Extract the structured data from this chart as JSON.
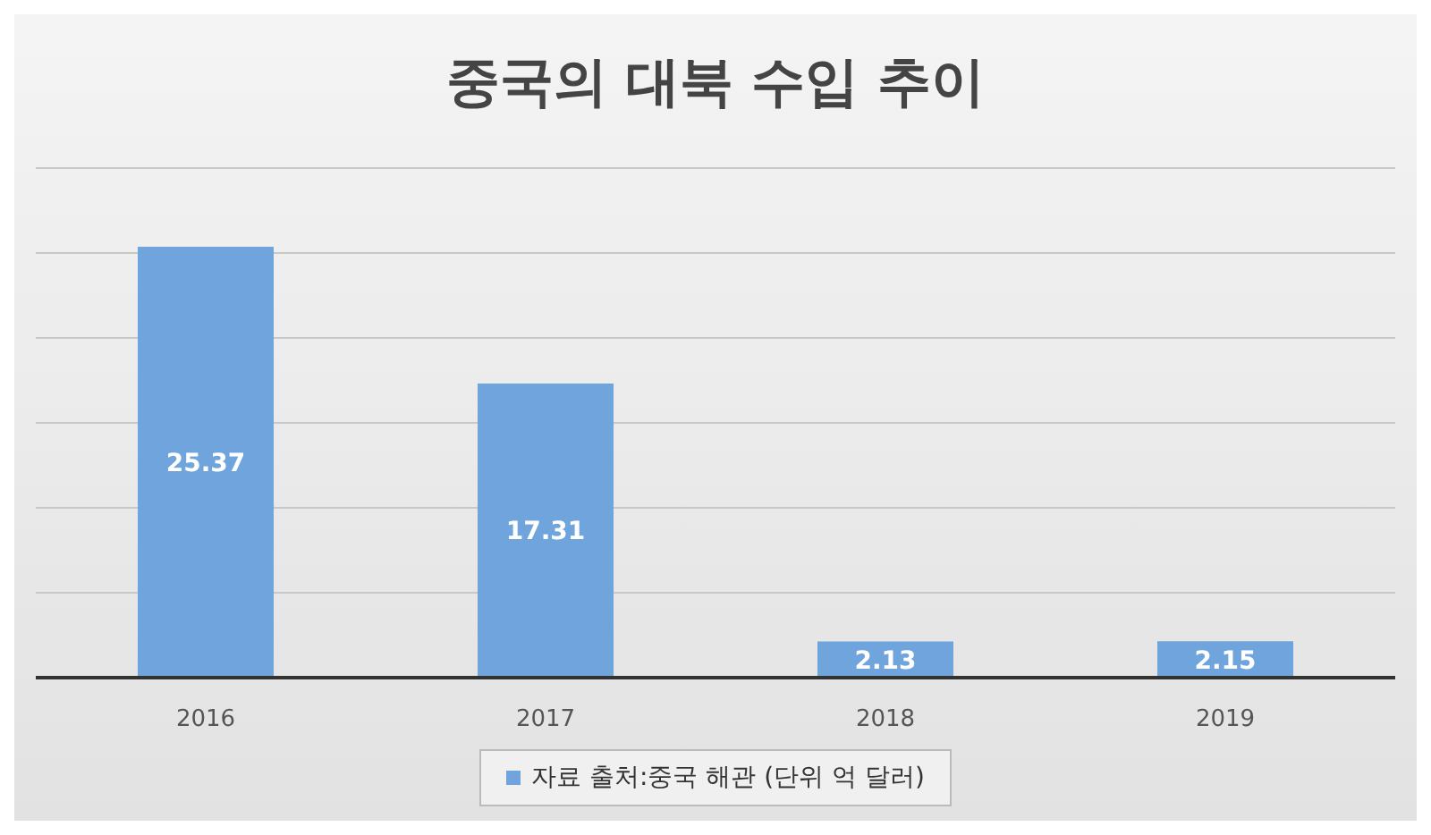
{
  "chart_data": {
    "type": "bar",
    "title": "중국의 대북 수입 추이",
    "categories": [
      "2016",
      "2017",
      "2018",
      "2019"
    ],
    "series": [
      {
        "name": "자료 출처:중국 해관 (단위 억 달러)",
        "color": "#6fa5dc",
        "values": [
          25.37,
          17.31,
          2.13,
          2.15
        ]
      }
    ],
    "ylim": [
      0,
      30
    ],
    "tick_labels": "x",
    "grid": "y",
    "data_labels": true,
    "legend": "bottom"
  }
}
